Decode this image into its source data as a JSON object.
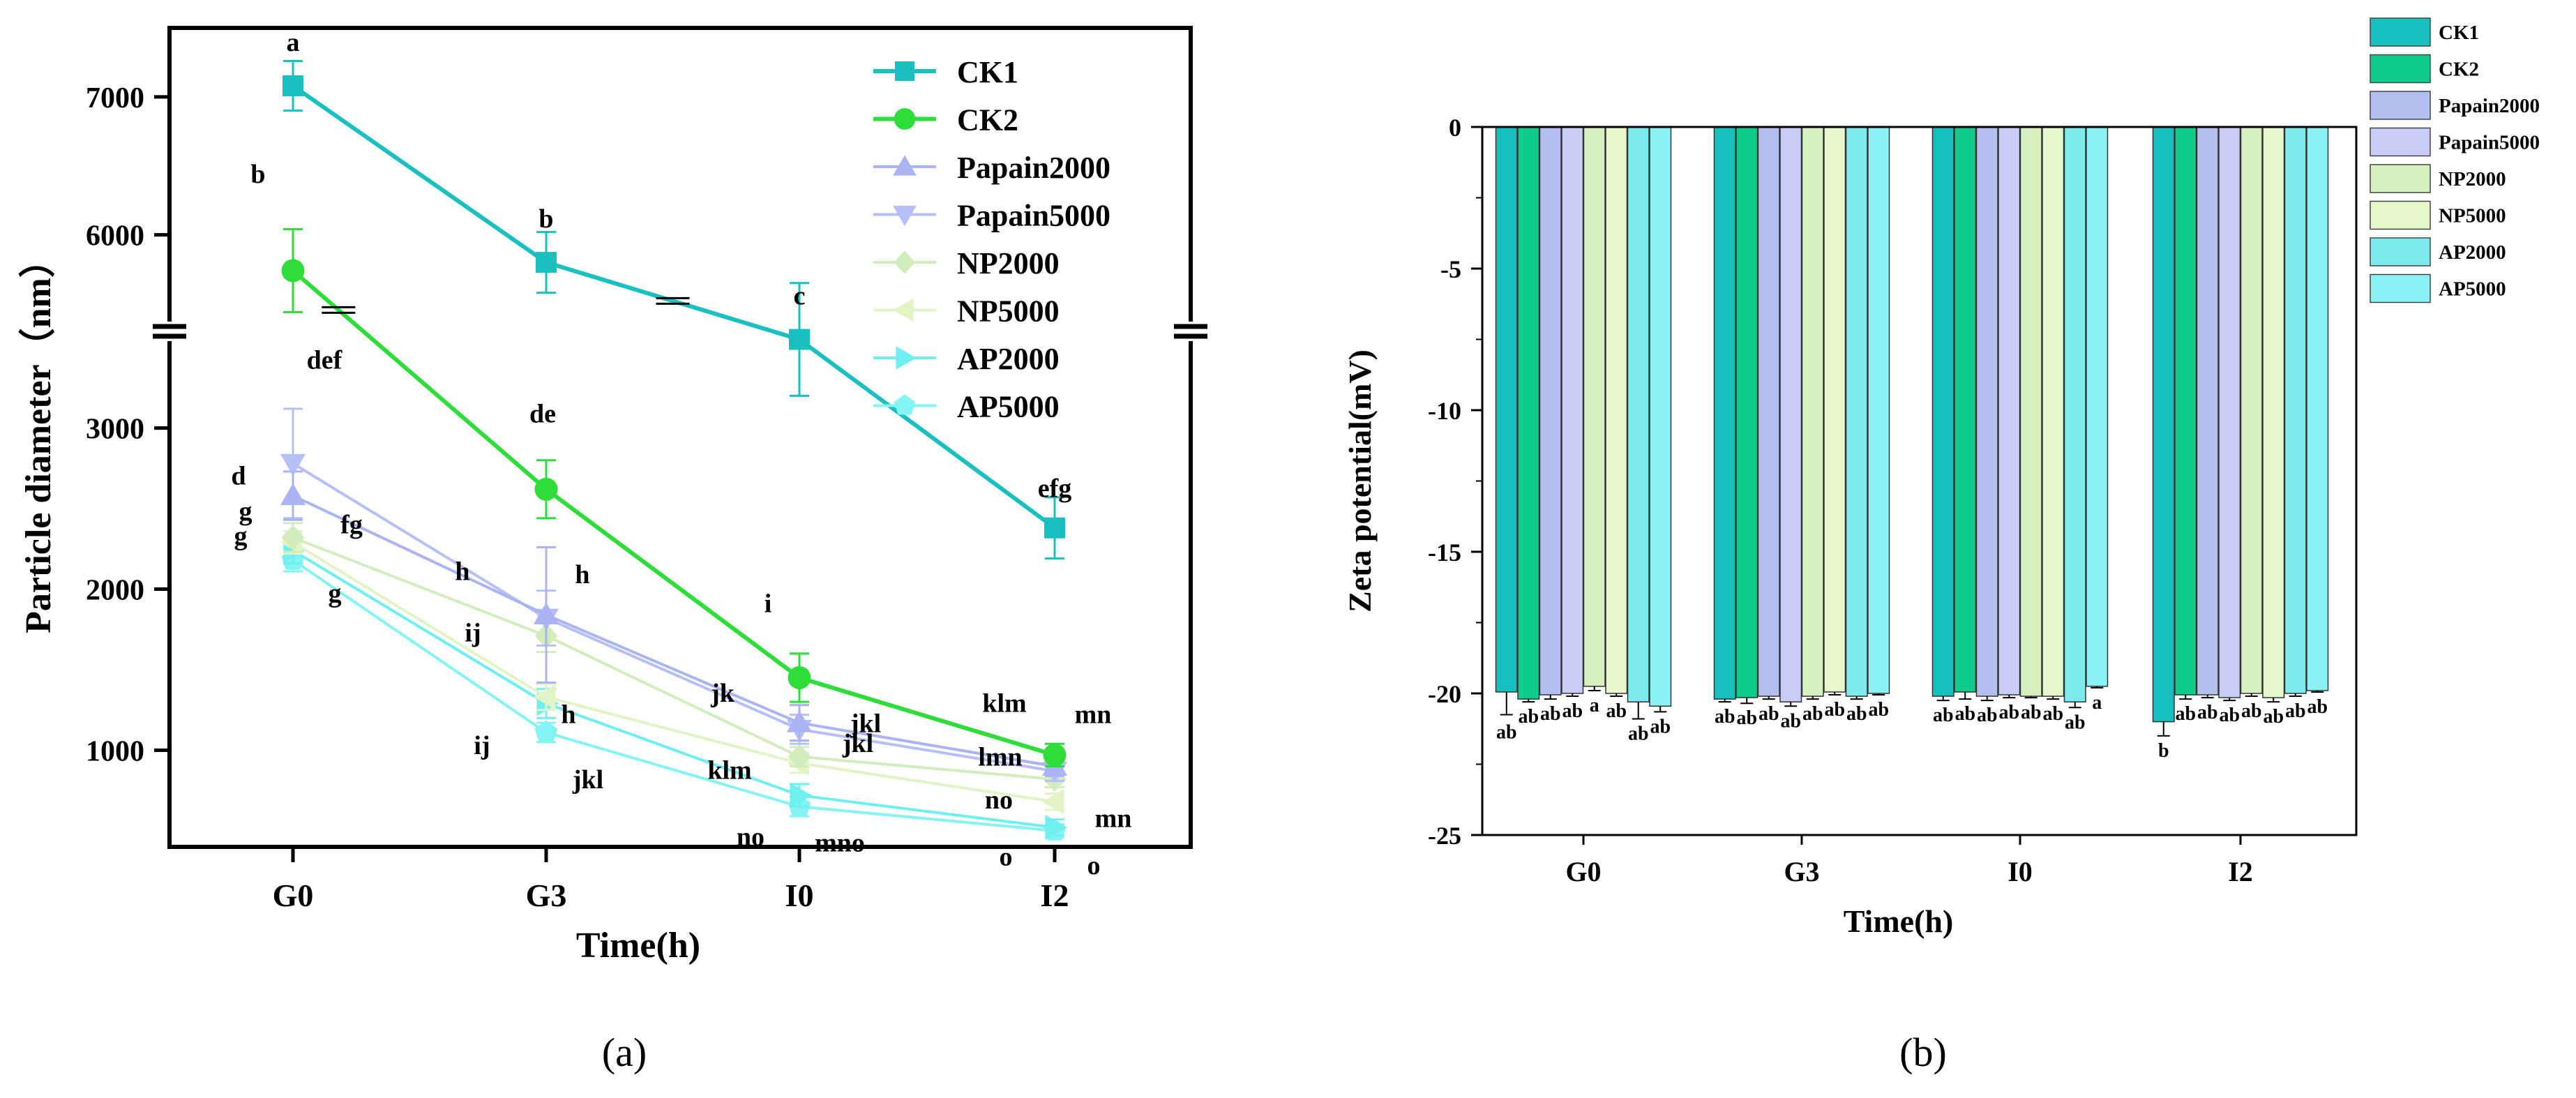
{
  "chart_data": [
    {
      "panel_label": "(a)",
      "type": "line",
      "xlabel": "Time(h)",
      "ylabel": "Particle diameter（nm）",
      "categories": [
        "G0",
        "G3",
        "I0",
        "I2"
      ],
      "axis_break": {
        "lower_range": [
          400,
          3600
        ],
        "upper_range": [
          5300,
          7500
        ]
      },
      "yticks": [
        1000,
        2000,
        3000,
        6000,
        7000
      ],
      "series": [
        {
          "name": "CK1",
          "color": "#1ABFBF",
          "marker": "square",
          "stroke_width": 6,
          "values": [
            7080,
            5800,
            3550,
            2380
          ],
          "errors": [
            180,
            220,
            350,
            190
          ],
          "labels": [
            "a",
            "b",
            "c",
            "efg"
          ]
        },
        {
          "name": "CK2",
          "color": "#2EDC3A",
          "marker": "circle",
          "stroke_width": 6,
          "values": [
            5740,
            2620,
            1450,
            970
          ],
          "errors": [
            300,
            180,
            150,
            70
          ],
          "labels": [
            "b",
            "de",
            "i",
            "mn"
          ]
        },
        {
          "name": "Papain2000",
          "color": "#AAB4F2",
          "marker": "triangle-up",
          "stroke_width": 4,
          "values": [
            2580,
            1840,
            1170,
            900
          ],
          "errors": [
            150,
            420,
            110,
            60
          ],
          "labels": [
            "d",
            "h",
            "jk",
            "klm"
          ]
        },
        {
          "name": "Papain5000",
          "color": "#B7C0F6",
          "marker": "triangle-down",
          "stroke_width": 4,
          "values": [
            2780,
            1820,
            1130,
            870
          ],
          "errors": [
            340,
            170,
            90,
            60
          ],
          "labels": [
            "def",
            "h",
            "jkl",
            "lmn"
          ]
        },
        {
          "name": "NP2000",
          "color": "#D2EDBB",
          "marker": "diamond",
          "stroke_width": 4,
          "values": [
            2320,
            1710,
            960,
            820
          ],
          "errors": [
            90,
            100,
            60,
            50
          ],
          "labels": [
            "fg",
            "ij",
            "klm",
            "no"
          ]
        },
        {
          "name": "NP5000",
          "color": "#E2F4C6",
          "marker": "triangle-left",
          "stroke_width": 4,
          "values": [
            2290,
            1330,
            920,
            680
          ],
          "errors": [
            70,
            80,
            60,
            50
          ],
          "labels": [
            "g",
            "ij",
            "jkl",
            "mn"
          ]
        },
        {
          "name": "AP2000",
          "color": "#6FEFF0",
          "marker": "triangle-right",
          "stroke_width": 4,
          "values": [
            2240,
            1290,
            720,
            520
          ],
          "errors": [
            80,
            90,
            70,
            50
          ],
          "labels": [
            "g",
            "h",
            "no",
            "o"
          ]
        },
        {
          "name": "AP5000",
          "color": "#83F3F3",
          "marker": "pentagon",
          "stroke_width": 4,
          "values": [
            2180,
            1110,
            650,
            500
          ],
          "errors": [
            70,
            60,
            60,
            40
          ],
          "labels": [
            "g",
            "jkl",
            "mno",
            "o"
          ]
        }
      ],
      "break_marks": [
        {
          "series": "CK2",
          "between": [
            "G0",
            "G3"
          ],
          "at": 0.18
        },
        {
          "series": "CK1",
          "between": [
            "G3",
            "I0"
          ],
          "at": 0.5
        }
      ]
    },
    {
      "panel_label": "(b)",
      "type": "bar",
      "xlabel": "Time(h)",
      "ylabel": "Zeta potential(mV)",
      "categories": [
        "G0",
        "G3",
        "I0",
        "I2"
      ],
      "ylim": [
        -25,
        0
      ],
      "yticks": [
        0,
        -5,
        -10,
        -15,
        -20,
        -25
      ],
      "series": [
        {
          "name": "CK1",
          "color": "#15C0BF",
          "values": [
            -19.95,
            -20.2,
            -20.1,
            -21.0
          ],
          "errors": [
            0.8,
            0.1,
            0.15,
            0.5
          ],
          "labels": [
            "ab",
            "ab",
            "ab",
            "b"
          ]
        },
        {
          "name": "CK2",
          "color": "#10CC8A",
          "values": [
            -20.2,
            -20.15,
            -19.95,
            -20.05
          ],
          "errors": [
            0.1,
            0.2,
            0.25,
            0.15
          ],
          "labels": [
            "ab",
            "ab",
            "ab",
            "ab"
          ]
        },
        {
          "name": "Papain2000",
          "color": "#B5BEF1",
          "values": [
            -20.05,
            -20.1,
            -20.1,
            -20.05
          ],
          "errors": [
            0.15,
            0.1,
            0.15,
            0.1
          ],
          "labels": [
            "ab",
            "ab",
            "ab",
            "ab"
          ]
        },
        {
          "name": "Papain5000",
          "color": "#C8CCF6",
          "values": [
            -20.0,
            -20.3,
            -20.05,
            -20.15
          ],
          "errors": [
            0.1,
            0.15,
            0.1,
            0.1
          ],
          "labels": [
            "ab",
            "ab",
            "ab",
            "ab"
          ]
        },
        {
          "name": "NP2000",
          "color": "#D7F0C0",
          "values": [
            -19.75,
            -20.1,
            -20.1,
            -20.0
          ],
          "errors": [
            0.15,
            0.1,
            0.05,
            0.1
          ],
          "labels": [
            "a",
            "ab",
            "ab",
            "ab"
          ]
        },
        {
          "name": "NP5000",
          "color": "#E6F7CB",
          "values": [
            -20.0,
            -19.95,
            -20.1,
            -20.15
          ],
          "errors": [
            0.1,
            0.1,
            0.1,
            0.15
          ],
          "labels": [
            "ab",
            "ab",
            "ab",
            "ab"
          ]
        },
        {
          "name": "AP2000",
          "color": "#7EECEE",
          "values": [
            -20.3,
            -20.1,
            -20.3,
            -20.0
          ],
          "errors": [
            0.6,
            0.1,
            0.2,
            0.1
          ],
          "labels": [
            "ab",
            "ab",
            "ab",
            "ab"
          ]
        },
        {
          "name": "AP5000",
          "color": "#8CF2F5",
          "values": [
            -20.45,
            -20.0,
            -19.75,
            -19.9
          ],
          "errors": [
            0.2,
            0.05,
            0.05,
            0.05
          ],
          "labels": [
            "ab",
            "ab",
            "a",
            "ab"
          ]
        }
      ]
    }
  ]
}
